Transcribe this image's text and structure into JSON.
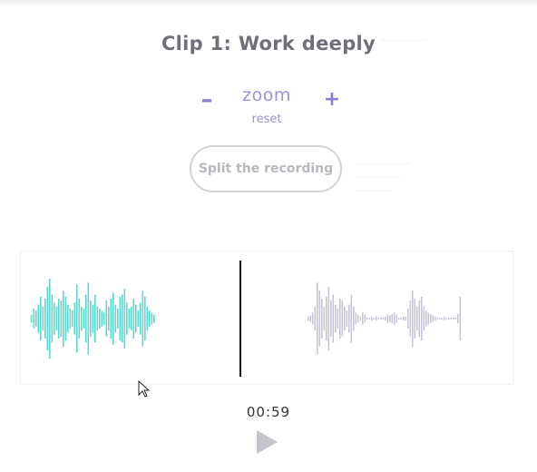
{
  "clip": {
    "title": "Clip 1: Work deeply"
  },
  "zoom": {
    "minus_label": "–",
    "label": "zoom",
    "plus_label": "+",
    "reset_label": "reset"
  },
  "split_button": {
    "label": "Split the recording"
  },
  "player": {
    "time": "00:59",
    "play_icon": "play-icon",
    "played_color": "#5fd8cf",
    "unplayed_color": "#c8c6d6",
    "playhead_color": "#111111",
    "accent_color": "#8a80cf"
  },
  "waveform": {
    "played_amplitudes": [
      0.1,
      0.25,
      0.2,
      0.35,
      0.55,
      0.3,
      0.5,
      0.8,
      1.0,
      0.6,
      0.4,
      0.3,
      0.5,
      0.45,
      0.7,
      0.55,
      0.35,
      0.25,
      0.2,
      0.4,
      0.85,
      0.5,
      0.3,
      0.25,
      0.6,
      0.9,
      0.45,
      0.35,
      0.6,
      0.3,
      0.25,
      0.2,
      0.15,
      0.45,
      0.3,
      0.5,
      0.65,
      0.35,
      0.25,
      0.55,
      0.6,
      0.75,
      0.4,
      0.25,
      0.3,
      0.5,
      0.35,
      0.2,
      0.4,
      0.7,
      0.55,
      0.3,
      0.2,
      0.15,
      0.1
    ],
    "unplayed_amplitudes": [
      0.05,
      0.08,
      0.15,
      0.3,
      0.9,
      0.7,
      0.5,
      0.3,
      0.55,
      0.8,
      0.45,
      0.6,
      0.35,
      0.25,
      0.5,
      0.45,
      0.3,
      0.2,
      0.35,
      0.6,
      0.3,
      0.15,
      0.1,
      0.05,
      0.15,
      0.1,
      0.0,
      0.0,
      0.05,
      0.0,
      0.05,
      0.0,
      0.0,
      0.0,
      0.05,
      0.1,
      0.08,
      0.12,
      0.15,
      0.1,
      0.0,
      0.0,
      0.05,
      0.05,
      0.25,
      0.45,
      0.7,
      0.5,
      0.3,
      0.45,
      0.55,
      0.3,
      0.2,
      0.15,
      0.12,
      0.08,
      0.05,
      0.0,
      0.0,
      0.0,
      0.04,
      0.02,
      0.0,
      0.0,
      0.0,
      0.0,
      0.12,
      0.55
    ]
  }
}
